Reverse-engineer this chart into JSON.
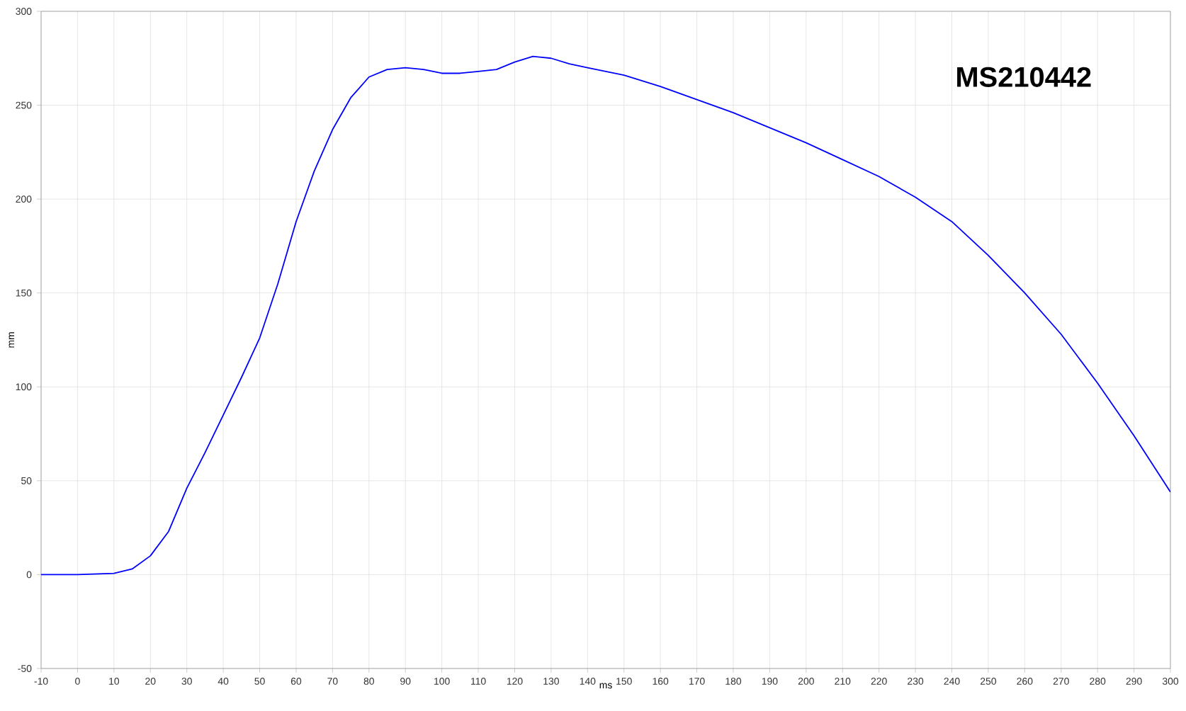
{
  "chart_data": {
    "type": "line",
    "xlabel": "ms",
    "ylabel": "mm",
    "annotations": [
      "MS210442"
    ],
    "x": [
      -10,
      0,
      10,
      15,
      20,
      25,
      30,
      35,
      40,
      45,
      50,
      55,
      60,
      65,
      70,
      75,
      80,
      85,
      90,
      95,
      100,
      105,
      110,
      115,
      120,
      125,
      130,
      135,
      140,
      150,
      160,
      170,
      180,
      190,
      200,
      210,
      220,
      230,
      240,
      250,
      260,
      270,
      280,
      290,
      300
    ],
    "series": [
      {
        "color": "#0000ff",
        "values": [
          0,
          0,
          0.7,
          3,
          10,
          23,
          46,
          65,
          85,
          105,
          126,
          155,
          188,
          215,
          237,
          254,
          265,
          269,
          270,
          269,
          267,
          267,
          268,
          269,
          273,
          276,
          275,
          272,
          270,
          266,
          260,
          253,
          246,
          238,
          230,
          221,
          212,
          201,
          188,
          170,
          150,
          128,
          102,
          74,
          44
        ]
      }
    ],
    "xlim": [
      -10,
      300
    ],
    "ylim": [
      -50,
      300
    ],
    "xticks": [
      -10,
      0,
      10,
      20,
      30,
      40,
      50,
      60,
      70,
      80,
      90,
      100,
      110,
      120,
      130,
      140,
      150,
      160,
      170,
      180,
      190,
      200,
      210,
      220,
      230,
      240,
      250,
      260,
      270,
      280,
      290,
      300
    ],
    "yticks": [
      -50,
      0,
      50,
      100,
      150,
      200,
      250,
      300
    ],
    "grid": true,
    "marker": "none",
    "line_style": "solid"
  }
}
